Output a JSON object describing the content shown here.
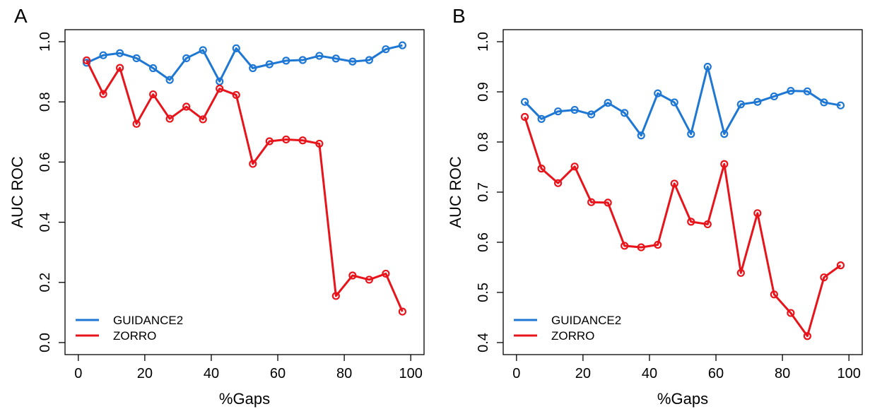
{
  "chart_data": [
    {
      "panel": "A",
      "type": "line",
      "xlabel": "%Gaps",
      "ylabel": "AUC ROC",
      "xlim": [
        0,
        100
      ],
      "ylim": [
        0.0,
        1.0
      ],
      "xticks": [
        0,
        20,
        40,
        60,
        80,
        100
      ],
      "xtick_labels": [
        "0",
        "20",
        "40",
        "60",
        "80",
        "100"
      ],
      "yticks": [
        0.0,
        0.2,
        0.4,
        0.6,
        0.8,
        1.0
      ],
      "ytick_labels": [
        "0.0",
        "0.2",
        "0.4",
        "0.6",
        "0.8",
        "1.0"
      ],
      "legend_position": "bottom-left",
      "x": [
        2.5,
        7.5,
        12.5,
        17.5,
        22.5,
        27.5,
        32.5,
        37.5,
        42.5,
        47.5,
        52.5,
        57.5,
        62.5,
        67.5,
        72.5,
        77.5,
        82.5,
        87.5,
        92.5,
        97.5
      ],
      "series": [
        {
          "name": "GUIDANCE2",
          "color": "#1f77d4",
          "values": [
            0.93,
            0.955,
            0.962,
            0.945,
            0.912,
            0.873,
            0.945,
            0.972,
            0.868,
            0.978,
            0.912,
            0.925,
            0.937,
            0.939,
            0.953,
            0.944,
            0.934,
            0.939,
            0.975,
            0.988
          ]
        },
        {
          "name": "ZORRO",
          "color": "#e8141b",
          "values": [
            0.938,
            0.826,
            0.913,
            0.727,
            0.825,
            0.744,
            0.784,
            0.742,
            0.844,
            0.823,
            0.594,
            0.669,
            0.675,
            0.672,
            0.661,
            0.155,
            0.223,
            0.209,
            0.229,
            0.103
          ]
        }
      ]
    },
    {
      "panel": "B",
      "type": "line",
      "xlabel": "%Gaps",
      "ylabel": "AUC ROC",
      "xlim": [
        0,
        100
      ],
      "ylim": [
        0.4,
        1.0
      ],
      "xticks": [
        0,
        20,
        40,
        60,
        80,
        100
      ],
      "xtick_labels": [
        "0",
        "20",
        "40",
        "60",
        "80",
        "100"
      ],
      "yticks": [
        0.4,
        0.5,
        0.6,
        0.7,
        0.8,
        0.9,
        1.0
      ],
      "ytick_labels": [
        "0.4",
        "0.5",
        "0.6",
        "0.7",
        "0.8",
        "0.9",
        "1.0"
      ],
      "legend_position": "bottom-left",
      "x": [
        2.5,
        7.5,
        12.5,
        17.5,
        22.5,
        27.5,
        32.5,
        37.5,
        42.5,
        47.5,
        52.5,
        57.5,
        62.5,
        67.5,
        72.5,
        77.5,
        82.5,
        87.5,
        92.5,
        97.5
      ],
      "series": [
        {
          "name": "GUIDANCE2",
          "color": "#1f77d4",
          "values": [
            0.88,
            0.846,
            0.861,
            0.864,
            0.855,
            0.878,
            0.858,
            0.813,
            0.897,
            0.879,
            0.816,
            0.95,
            0.816,
            0.875,
            0.88,
            0.891,
            0.902,
            0.901,
            0.879,
            0.873
          ]
        },
        {
          "name": "ZORRO",
          "color": "#e8141b",
          "values": [
            0.85,
            0.747,
            0.718,
            0.751,
            0.68,
            0.679,
            0.593,
            0.59,
            0.595,
            0.717,
            0.641,
            0.636,
            0.756,
            0.539,
            0.658,
            0.496,
            0.459,
            0.413,
            0.53,
            0.554
          ]
        }
      ]
    }
  ]
}
